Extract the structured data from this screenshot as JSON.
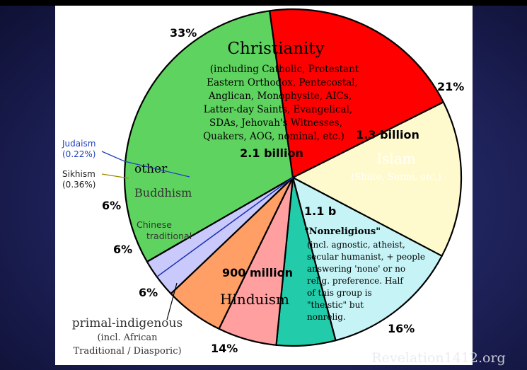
{
  "chart_data": {
    "type": "pie",
    "slices": [
      {
        "key": "christianity",
        "name": "Christianity",
        "value": 33,
        "percent_label": "33%",
        "count_label": "2.1 billion",
        "detail": [
          "(including Catholic, Protestant",
          "Eastern Orthodox, Pentecostal,",
          "Anglican, Monophysite, AICs,",
          "Latter-day Saints, Evangelical,",
          "SDAs, Jehovah's Witnesses,",
          "Quakers, AOG, nominal, etc.)"
        ],
        "color": "#5fd35f"
      },
      {
        "key": "islam",
        "name": "Islam",
        "value": 21,
        "percent_label": "21%",
        "count_label": "1.3 billion",
        "detail": [
          "(Shiite, Sunni, etc.)"
        ],
        "color": "#ff0000"
      },
      {
        "key": "nonreligious",
        "name": "\"Nonreligious\"",
        "value": 16,
        "percent_label": "16%",
        "count_label": "1.1 b",
        "detail": [
          "(incl. agnostic, atheist,",
          "secular humanist, + people",
          "answering 'none' or no",
          "relig. preference. Half",
          "of this group is",
          "\"theistic\" but",
          "nonrelig."
        ],
        "color": "#fffacd"
      },
      {
        "key": "hinduism",
        "name": "Hinduism",
        "value": 14,
        "percent_label": "14%",
        "count_label": "900 million",
        "detail": [],
        "color": "#c6f4f6"
      },
      {
        "key": "primal",
        "name": "primal-indigenous",
        "value": 6,
        "percent_label": "6%",
        "count_label": "",
        "detail": [
          "(incl. African",
          "Traditional / Diasporic)"
        ],
        "color": "#22ccaa"
      },
      {
        "key": "chinese",
        "name": "Chinese traditional",
        "value": 6,
        "percent_label": "6%",
        "count_label": "",
        "detail": [],
        "color": "#ff9fa0"
      },
      {
        "key": "buddhism",
        "name": "Buddhism",
        "value": 6,
        "percent_label": "6%",
        "count_label": "",
        "detail": [],
        "color": "#ff9f66"
      },
      {
        "key": "other",
        "name": "other",
        "value": 4,
        "percent_label": "",
        "count_label": "",
        "detail": [],
        "color": "#c9c9fb"
      }
    ],
    "small_slices": [
      {
        "name": "Judaism",
        "percent_label": "(0.22%)",
        "color": "#2040c0"
      },
      {
        "name": "Sikhism",
        "percent_label": "(0.36%)",
        "color": "#9a8a00"
      }
    ],
    "chinese_lines": [
      "Chinese",
      "traditional"
    ],
    "legend": "none"
  },
  "watermark": "Revelation1412.org"
}
